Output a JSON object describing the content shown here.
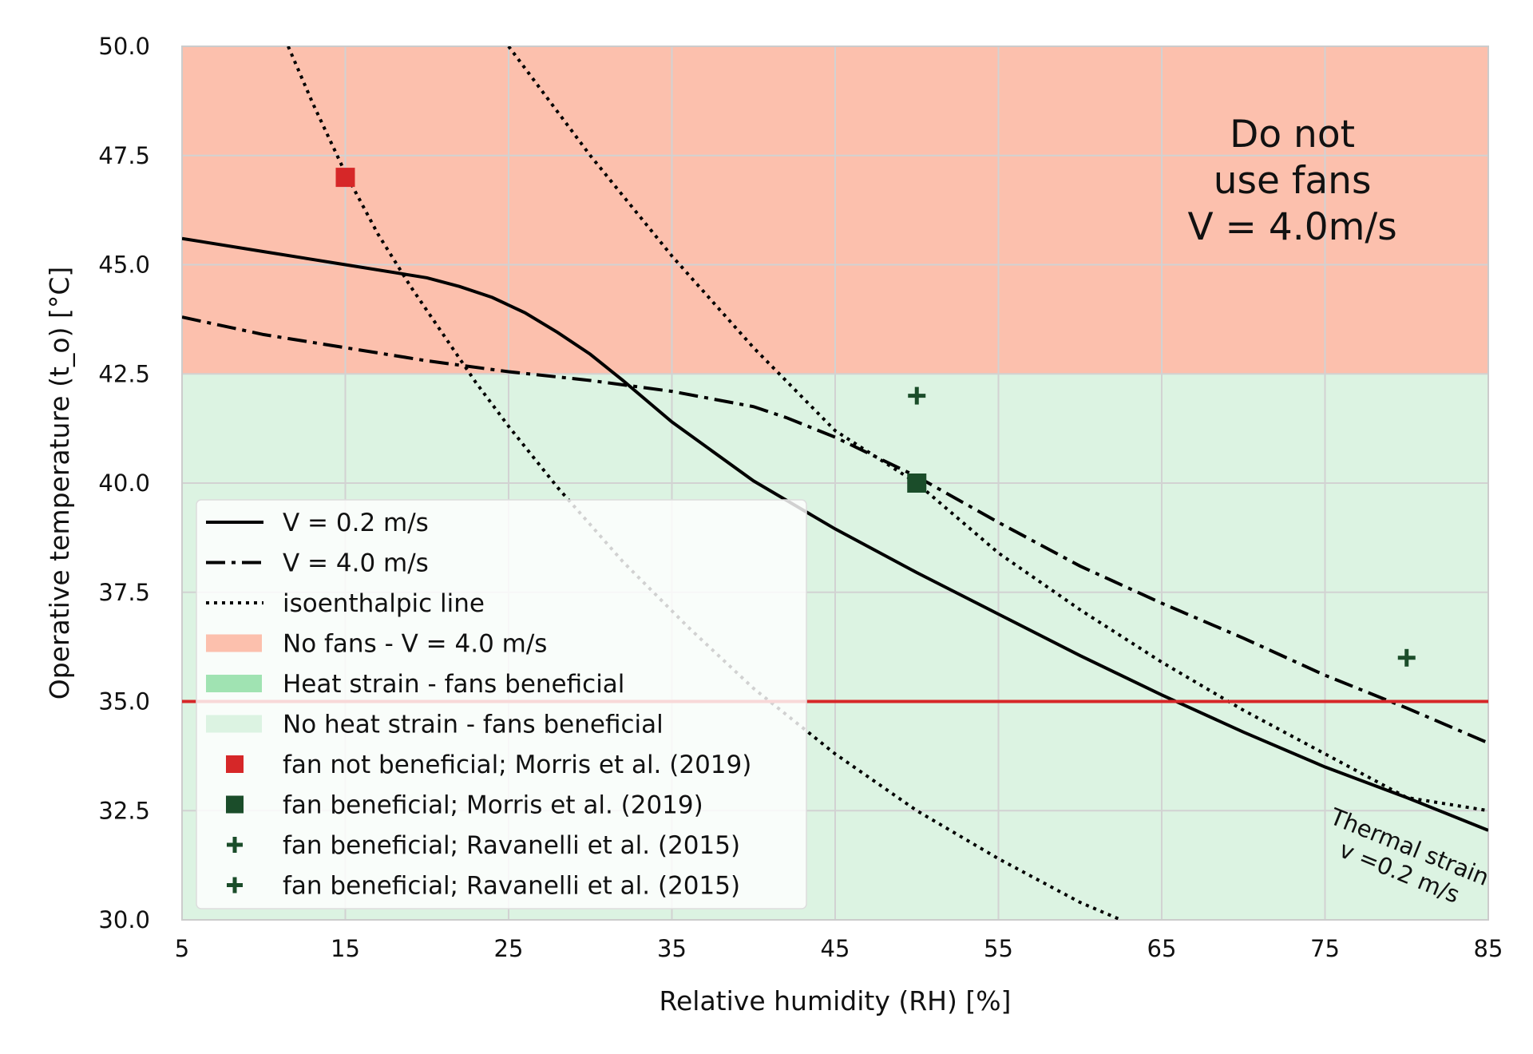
{
  "chart_data": {
    "type": "line",
    "xlabel": "Relative humidity (RH) [%]",
    "ylabel": "Operative temperature (t_o) [°C]",
    "xlim": [
      5,
      85
    ],
    "ylim": [
      30,
      50
    ],
    "xticks": [
      "5",
      "15",
      "25",
      "35",
      "45",
      "55",
      "65",
      "75",
      "85"
    ],
    "yticks": [
      "30.0",
      "32.5",
      "35.0",
      "37.5",
      "40.0",
      "42.5",
      "45.0",
      "47.5",
      "50.0"
    ],
    "grid": true,
    "legend_position": "lower-left",
    "series": [
      {
        "name": "V = 0.2 m/s",
        "style": "solid",
        "x": [
          5,
          10,
          15,
          20,
          22,
          24,
          26,
          28,
          30,
          32,
          35,
          40,
          45,
          50,
          55,
          60,
          65,
          70,
          75,
          80,
          85
        ],
        "y": [
          45.6,
          45.3,
          45.0,
          44.7,
          44.5,
          44.25,
          43.9,
          43.45,
          42.95,
          42.35,
          41.4,
          40.05,
          38.95,
          37.95,
          37.0,
          36.05,
          35.15,
          34.3,
          33.5,
          32.8,
          32.05
        ]
      },
      {
        "name": "V = 4.0 m/s",
        "style": "dashdot",
        "x": [
          5,
          10,
          15,
          20,
          25,
          30,
          35,
          40,
          42,
          45,
          50,
          55,
          60,
          65,
          70,
          75,
          80,
          85
        ],
        "y": [
          43.8,
          43.4,
          43.1,
          42.8,
          42.55,
          42.35,
          42.1,
          41.75,
          41.5,
          41.05,
          40.15,
          39.1,
          38.1,
          37.25,
          36.45,
          35.6,
          34.85,
          34.05
        ]
      },
      {
        "name": "isoenthalpic line",
        "style": "dotted",
        "x": [
          11.5,
          13,
          15,
          17,
          19,
          21,
          23,
          25,
          28,
          32,
          36,
          40,
          45,
          50,
          55,
          60,
          62.5
        ],
        "y": [
          50.0,
          48.7,
          47.1,
          45.7,
          44.5,
          43.4,
          42.3,
          41.3,
          39.9,
          38.2,
          36.7,
          35.3,
          33.8,
          32.5,
          31.4,
          30.4,
          30.0
        ]
      },
      {
        "name": "isoenthalpic line",
        "style": "dotted",
        "legend": false,
        "x": [
          25,
          30,
          35,
          40,
          45,
          50,
          55,
          60,
          65,
          70,
          75,
          80,
          85
        ],
        "y": [
          50.0,
          47.5,
          45.2,
          43.1,
          41.2,
          40.0,
          38.4,
          37.1,
          35.9,
          34.8,
          33.8,
          32.8,
          32.5
        ]
      }
    ],
    "regions": [
      {
        "name": "No fans - V = 4.0 m/s",
        "color": "#fcc0ad",
        "x": [
          5,
          85
        ],
        "y_lower": [
          42.5,
          42.5
        ],
        "y_upper": [
          50,
          50
        ]
      },
      {
        "name": "Heat strain - fans beneficial",
        "color": "#a0e3b2",
        "x": [
          5,
          30,
          45,
          50,
          55,
          60,
          63,
          65,
          70,
          75,
          80,
          85
        ],
        "y_lower": [
          42.35,
          42.35,
          41.05,
          40.15,
          39.1,
          38.1,
          37.6,
          37.25,
          36.45,
          35.6,
          34.85,
          34.05
        ],
        "y_upper": [
          42.5,
          42.5,
          42.5,
          42.5,
          42.5,
          42.5,
          42.5,
          42.3,
          41.4,
          40.6,
          39.9,
          39.3
        ]
      },
      {
        "name": "No heat strain - fans beneficial",
        "color": "#dcf3e2",
        "x": [
          5,
          85
        ],
        "y_lower": [
          30,
          30
        ],
        "y_upper": [
          42.5,
          42.5
        ]
      }
    ],
    "hline": {
      "y": 35.0,
      "color": "#d62728"
    },
    "points": [
      {
        "name": "fan not beneficial; Morris et al. (2019)",
        "marker": "square",
        "color": "#d62728",
        "x": [
          15
        ],
        "y": [
          47.0
        ]
      },
      {
        "name": "fan beneficial; Morris et al. (2019)",
        "marker": "square",
        "color": "#1b4d2a",
        "x": [
          50
        ],
        "y": [
          40.0
        ]
      },
      {
        "name": "fan beneficial; Ravanelli et al. (2015)",
        "marker": "plus",
        "color": "#1b4d2a",
        "x": [
          50
        ],
        "y": [
          42.0
        ]
      },
      {
        "name": "fan beneficial; Ravanelli et al. (2015)",
        "marker": "plus",
        "color": "#1b4d2a",
        "x": [
          80
        ],
        "y": [
          36.0
        ]
      }
    ],
    "legend": [
      {
        "label": "V = 0.2 m/s",
        "kind": "line",
        "style": "solid"
      },
      {
        "label": "V = 4.0 m/s",
        "kind": "line",
        "style": "dashdot"
      },
      {
        "label": "isoenthalpic line",
        "kind": "line",
        "style": "dotted"
      },
      {
        "label": "No fans - V = 4.0 m/s",
        "kind": "patch",
        "color": "#fcc0ad"
      },
      {
        "label": "Heat strain - fans beneficial",
        "kind": "patch",
        "color": "#a0e3b2"
      },
      {
        "label": "No heat strain - fans beneficial",
        "kind": "patch",
        "color": "#dcf3e2"
      },
      {
        "label": "fan not beneficial; Morris et al. (2019)",
        "kind": "square",
        "color": "#d62728"
      },
      {
        "label": "fan beneficial; Morris et al. (2019)",
        "kind": "square",
        "color": "#1b4d2a"
      },
      {
        "label": "fan beneficial; Ravanelli et al. (2015)",
        "kind": "plus",
        "color": "#1b4d2a"
      },
      {
        "label": "fan beneficial; Ravanelli et al. (2015)",
        "kind": "plus",
        "color": "#1b4d2a"
      }
    ],
    "annotations": [
      {
        "name": "do-not-use-fans",
        "lines": [
          "Do not",
          "use fans",
          "V = 4.0m/s"
        ],
        "x": 73,
        "y": 47.7
      },
      {
        "name": "thermal-strain",
        "lines": [
          "Thermal strain",
          "v =0.2 m/s"
        ],
        "x": 80,
        "y": 31.5,
        "rotation": 22
      }
    ]
  }
}
